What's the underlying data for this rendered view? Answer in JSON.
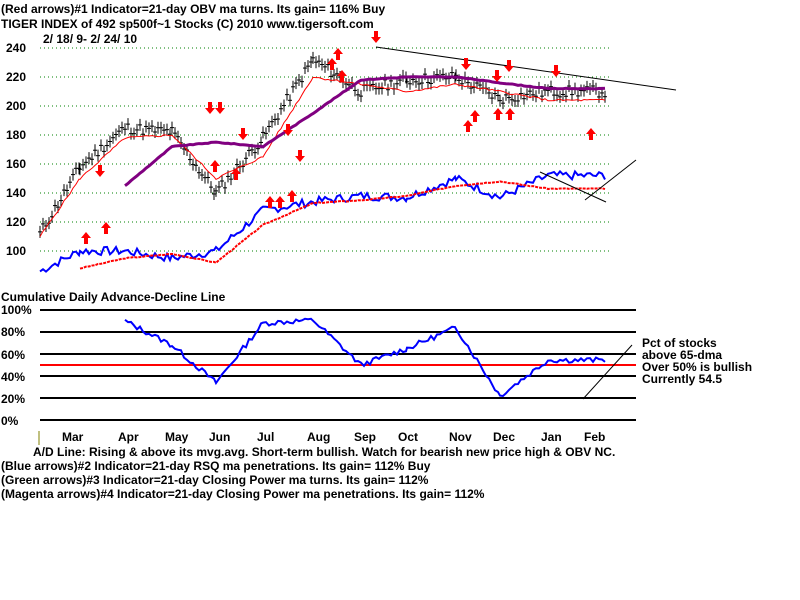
{
  "header": {
    "line1": "(Red arrows)#1 Indicator=21-day OBV ma turns. Its gain= 116% Buy",
    "line2": "TIGER INDEX of  492 sp500f~1 Stocks  (C) 2010  www.tigersoft.com",
    "date_range": "2/ 18/ 9- 2/ 24/ 10"
  },
  "ad_label": "Cumulative Daily Advance-Decline Line",
  "pct_panel": {
    "note_lines": [
      "Pct of stocks",
      "above 65-dma",
      "Over 50% is bullish",
      "Currently  54.5"
    ]
  },
  "footer": {
    "ad_comment": "A/D Line: Rising & above its mvg.avg. Short-term bullish. Watch for bearish new price high & OBV NC.",
    "blue": "(Blue arrows)#2 Indicator=21-day RSQ ma penetrations. Its gain= 112% Buy",
    "green": "(Green arrows)#3 Indicator=21-day Closing Power ma turns. Its gain= 112%",
    "magenta": "(Magenta arrows)#4 Indicator=21-day Closing Power ma penetrations. Its gain= 112%"
  },
  "colors": {
    "price_bars": "#000000",
    "ma_short": "#ff0000",
    "ma_long": "#800080",
    "ad_line": "#0000ff",
    "ad_ma": "#ff0000",
    "arrows": "#ff0000",
    "grid_dotted": "#008000",
    "bullish_line": "#ff0000"
  },
  "chart_data": [
    {
      "type": "line",
      "title": "TIGER INDEX of 492 sp500f~1 Stocks",
      "subtitle": "2/18/9 - 2/24/10",
      "xlabel": "",
      "ylabel": "",
      "ylim": [
        90,
        245
      ],
      "yticks": [
        240,
        220,
        200,
        180,
        160,
        140,
        120,
        100
      ],
      "x": [
        "Mar",
        "Apr",
        "May",
        "Jun",
        "Jul",
        "Aug",
        "Sep",
        "Oct",
        "Nov",
        "Dec",
        "Jan",
        "Feb"
      ],
      "grid": true,
      "series": [
        {
          "name": "Tiger Index (price bars)",
          "values": [
            112,
            158,
            185,
            182,
            140,
            178,
            232,
            210,
            218,
            220,
            205,
            210
          ]
        },
        {
          "name": "21-day MA",
          "values": [
            110,
            150,
            178,
            180,
            150,
            165,
            220,
            215,
            210,
            215,
            210,
            204
          ]
        },
        {
          "name": "65-day MA",
          "values": [
            null,
            null,
            145,
            172,
            175,
            172,
            195,
            218,
            220,
            220,
            216,
            212
          ]
        },
        {
          "name": "Cumulative A/D Line",
          "values": [
            86,
            100,
            100,
            95,
            100,
            128,
            134,
            138,
            137,
            150,
            137,
            152
          ]
        },
        {
          "name": "A/D MA",
          "values": [
            null,
            88,
            95,
            98,
            92,
            118,
            133,
            135,
            138,
            145,
            148,
            143
          ]
        }
      ]
    },
    {
      "type": "line",
      "title": "Pct of stocks above 65-dma",
      "ylim": [
        0,
        100
      ],
      "yticks": [
        "100%",
        "80%",
        "60%",
        "40%",
        "20%",
        "0%"
      ],
      "x": [
        "Mar",
        "Apr",
        "May",
        "Jun",
        "Jul",
        "Aug",
        "Sep",
        "Oct",
        "Nov",
        "Dec",
        "Jan",
        "Feb"
      ],
      "series": [
        {
          "name": "Pct above 65-dma",
          "values": [
            null,
            null,
            90,
            68,
            34,
            88,
            91,
            50,
            65,
            84,
            22,
            54.5
          ]
        }
      ],
      "annotations": [
        "Over 50% is bullish",
        "Currently 54.5"
      ],
      "reference_line": 50
    }
  ]
}
